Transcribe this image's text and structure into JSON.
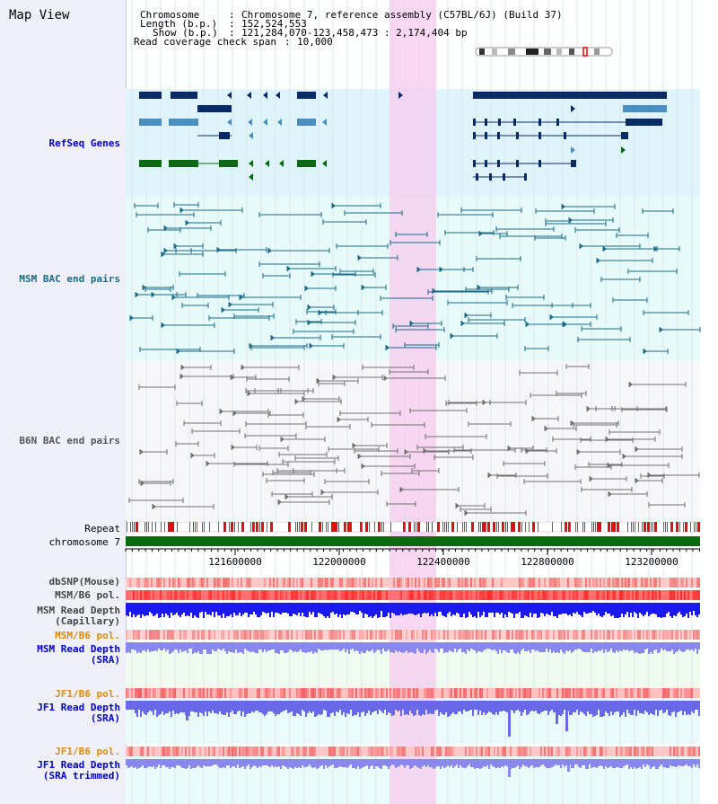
{
  "header": {
    "title": "Map View",
    "chromosome_label": "Chromosome",
    "chromosome_value": "Chromosome 7, reference assembly (C57BL/6J) (Build 37)",
    "length_label": "Length (b.p.)",
    "length_value": "152,524,553",
    "show_label": "Show (b.p.)",
    "show_value": "121,284,070-123,458,473 : 2,174,404 bp",
    "coverage_label": "Read coverage check span",
    "coverage_value": "10,000"
  },
  "tracks": {
    "refseq": "RefSeq Genes",
    "msm_bac": "MSM BAC end pairs",
    "b6n_bac": "B6N BAC end pairs",
    "repeat": "Repeat",
    "chromosome": "chromosome 7",
    "dbsnp": "dbSNP(Mouse)",
    "msm_b6_pol": "MSM/B6 pol.",
    "msm_depth_cap_1": "MSM Read Depth",
    "msm_depth_cap_2": "(Capillary)",
    "msm_b6_pol_2": "MSM/B6 pol.",
    "msm_depth_sra_1": "MSM Read Depth",
    "msm_depth_sra_2": "(SRA)",
    "jf1_b6_pol": "JF1/B6 pol.",
    "jf1_depth_sra_1": "JF1 Read Depth",
    "jf1_depth_sra_2": "(SRA)",
    "jf1_b6_pol_2": "JF1/B6 pol.",
    "jf1_depth_trim_1": "JF1 Read Depth",
    "jf1_depth_trim_2": "(SRA trimmed)"
  },
  "axis": {
    "ticks": [
      "121600000",
      "122000000",
      "122400000",
      "122800000",
      "123200000"
    ]
  },
  "colors": {
    "refseq_bg": "#dff4fb",
    "bac_bg": "#e8fbfb",
    "highlight": "#f6d0ee",
    "gene_navy": "#0a2a66",
    "gene_blue": "#4a8fc0",
    "gene_green": "#0a6a10",
    "msm_line": "#1a6a8a",
    "b6n_line": "#707070",
    "msm_orange": "#e08a00",
    "label_blue": "#0000cc"
  }
}
